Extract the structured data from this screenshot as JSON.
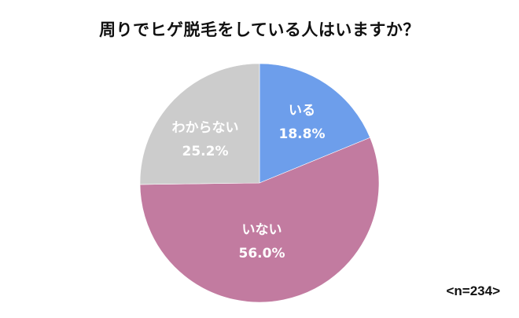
{
  "chart_data": {
    "type": "pie",
    "title": "周りでヒゲ脱毛をしている人はいますか？",
    "categories": [
      "いる",
      "いない",
      "わからない"
    ],
    "values": [
      18.8,
      56.0,
      25.2
    ],
    "value_labels": [
      "18.8%",
      "56.0%",
      "25.2%"
    ],
    "colors": [
      "#6d9eeb",
      "#c27ba0",
      "#cccccc"
    ],
    "start_angle": "12 o'clock, clockwise",
    "legend": "none (labels inside slices)",
    "annotation": "<n=234>"
  },
  "title": "周りでヒゲ脱毛をしている人はいますか？",
  "slices": [
    {
      "label": "いる",
      "value": "18.8%"
    },
    {
      "label": "いない",
      "value": "56.0%"
    },
    {
      "label": "わからない",
      "value": "25.2%"
    }
  ],
  "sample_size": "<n=234>"
}
